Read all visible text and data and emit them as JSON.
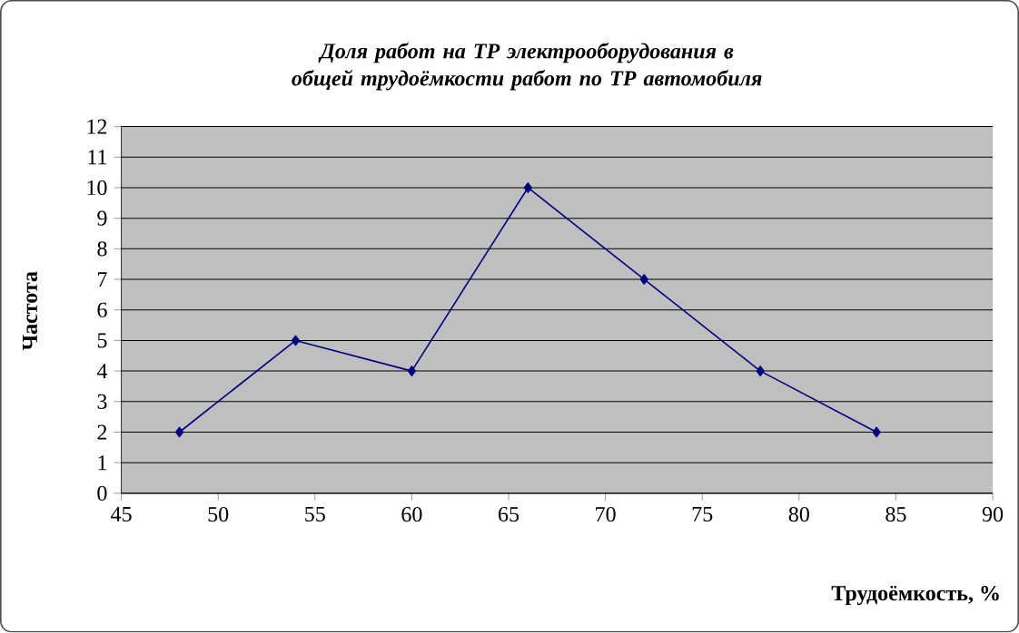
{
  "chart_data": {
    "type": "line",
    "title": "Доля работ на ТР электрооборудования в общей трудоёмкости работ по ТР автомобиля",
    "xlabel": "Трудоёмкость, %",
    "ylabel": "Частота",
    "x": [
      48,
      54,
      60,
      66,
      72,
      78,
      84
    ],
    "series": [
      {
        "color": "#000080",
        "values": [
          2,
          5,
          4,
          10,
          7,
          4,
          2
        ]
      }
    ],
    "xlim": [
      45,
      90
    ],
    "xticks": [
      45,
      50,
      55,
      60,
      65,
      70,
      75,
      80,
      85,
      90
    ],
    "ylim": [
      0,
      12
    ],
    "yticks": [
      0,
      1,
      2,
      3,
      4,
      5,
      6,
      7,
      8,
      9,
      10,
      11,
      12
    ],
    "grid": "y",
    "marker": "diamond",
    "line_style": "solid"
  }
}
